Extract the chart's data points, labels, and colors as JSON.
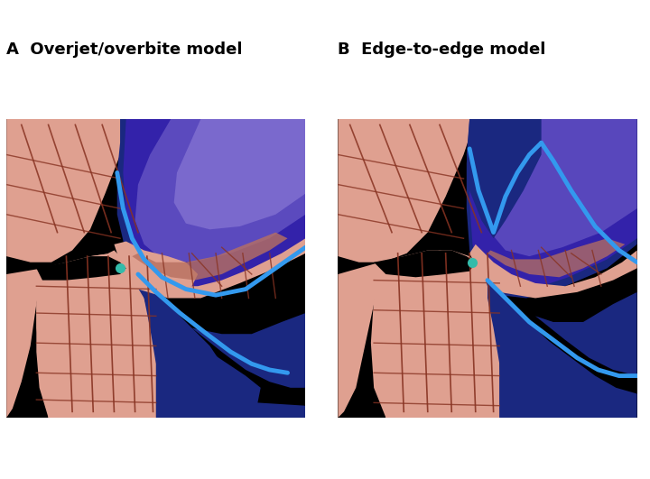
{
  "title_a": "A  Overjet/overbite model",
  "title_b": "B  Edge-to-edge model",
  "bg_color": "#ffffff",
  "panel_bg": "#000000",
  "skin_color": "#DFA090",
  "skin_mid": "#CC8878",
  "blue_dark": "#1A2880",
  "blue_navy": "#162060",
  "blue_bright": "#3399EE",
  "purple_dark": "#3322AA",
  "purple_mid": "#5544BB",
  "purple_light": "#7766CC",
  "teal": "#33BBAA",
  "brown_line": "#883322",
  "title_fontsize": 13,
  "white": "#ffffff"
}
